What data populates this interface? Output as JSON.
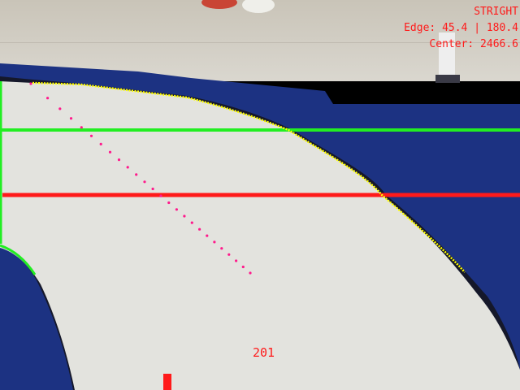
{
  "hud": {
    "mode": "STRIGHT",
    "edge": "Edge: 45.4 | 180.4",
    "center": "Center: 2466.6",
    "frame_counter": "201"
  },
  "overlay": {
    "colors": {
      "upper_scan_line": "#22ee22",
      "lower_scan_line": "#ff1a1a",
      "track_edge": "#ffff00",
      "inner_edge": "#22ee22",
      "center_path": "#ff1a8c",
      "hud_text": "#ff1a1a",
      "target_marker": "#ff1a1a"
    }
  },
  "scene": {
    "colors": {
      "floor": "#cfcbc2",
      "mat_blue": "#1c3282",
      "track_white": "#e3e3de",
      "track_border": "#15182a"
    }
  }
}
